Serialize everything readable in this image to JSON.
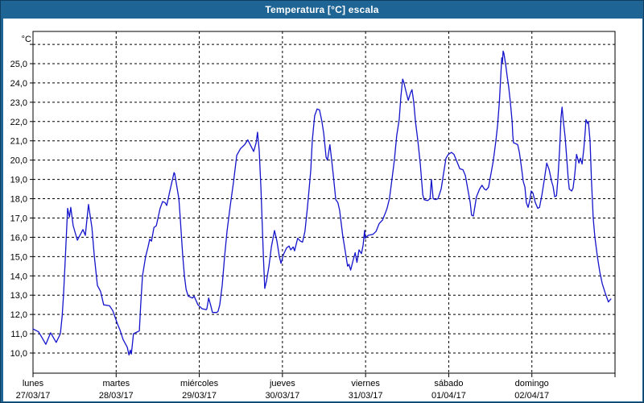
{
  "window": {
    "title": "Temperatura [°C] escala"
  },
  "colors": {
    "frame": "#1E6494",
    "frame_edge": "#0E3E62",
    "title_text": "#FFFFFF",
    "plot_background": "#FFFFFF",
    "grid": "#000000",
    "axis": "#000000",
    "label_text": "#000000",
    "line": "#1414CC"
  },
  "chart_data": {
    "type": "line",
    "title": "Temperatura [°C] escala",
    "unit_label": "°C",
    "legend": "none",
    "grid": "dashed",
    "x_axis": {
      "kind": "time",
      "total_hours": 168,
      "days": [
        {
          "name": "lunes",
          "date": "27/03/17"
        },
        {
          "name": "martes",
          "date": "28/03/17"
        },
        {
          "name": "miércoles",
          "date": "29/03/17"
        },
        {
          "name": "jueves",
          "date": "30/03/17"
        },
        {
          "name": "viernes",
          "date": "31/03/17"
        },
        {
          "name": "sábado",
          "date": "01/04/17"
        },
        {
          "name": "domingo",
          "date": "02/04/17"
        }
      ]
    },
    "y_axis": {
      "min": 10,
      "max": 26,
      "step": 1,
      "labeled_min": 10,
      "labeled_max": 25,
      "tick_labels": [
        "10,0",
        "11,0",
        "12,0",
        "13,0",
        "14,0",
        "15,0",
        "16,0",
        "17,0",
        "18,0",
        "19,0",
        "20,0",
        "21,0",
        "22,0",
        "23,0",
        "24,0",
        "25,0"
      ],
      "decimal_separator": ","
    },
    "series": [
      {
        "name": "Temperatura",
        "points": [
          [
            0,
            11.25
          ],
          [
            1.6,
            11.1
          ],
          [
            2.6,
            10.8
          ],
          [
            3.7,
            10.45
          ],
          [
            5.1,
            11.05
          ],
          [
            6.7,
            10.55
          ],
          [
            7.9,
            11.0
          ],
          [
            8.4,
            11.9
          ],
          [
            8.8,
            13.0
          ],
          [
            9.3,
            14.8
          ],
          [
            10.0,
            17.5
          ],
          [
            10.5,
            17.05
          ],
          [
            10.9,
            17.55
          ],
          [
            11.6,
            16.6
          ],
          [
            12.8,
            15.85
          ],
          [
            14.4,
            16.4
          ],
          [
            15.1,
            16.1
          ],
          [
            16.0,
            17.7
          ],
          [
            17.0,
            16.5
          ],
          [
            17.7,
            15.0
          ],
          [
            18.6,
            13.5
          ],
          [
            19.5,
            13.2
          ],
          [
            20.4,
            12.5
          ],
          [
            22.1,
            12.45
          ],
          [
            23.0,
            12.2
          ],
          [
            24.4,
            11.5
          ],
          [
            25.1,
            11.2
          ],
          [
            26.0,
            10.7
          ],
          [
            27.2,
            10.3
          ],
          [
            27.7,
            9.9
          ],
          [
            28.1,
            10.15
          ],
          [
            28.4,
            9.95
          ],
          [
            29.0,
            11.0
          ],
          [
            30.7,
            11.15
          ],
          [
            31.1,
            12.5
          ],
          [
            31.6,
            14.0
          ],
          [
            32.5,
            15.0
          ],
          [
            33.2,
            15.5
          ],
          [
            33.7,
            15.9
          ],
          [
            34.2,
            15.8
          ],
          [
            34.9,
            16.5
          ],
          [
            35.6,
            16.6
          ],
          [
            36.7,
            17.5
          ],
          [
            37.4,
            17.85
          ],
          [
            38.1,
            17.8
          ],
          [
            38.6,
            17.65
          ],
          [
            39.5,
            18.4
          ],
          [
            40.7,
            19.35
          ],
          [
            40.9,
            19.3
          ],
          [
            42.1,
            18.0
          ],
          [
            42.5,
            17.0
          ],
          [
            43.2,
            15.1
          ],
          [
            43.7,
            14.0
          ],
          [
            44.2,
            13.3
          ],
          [
            44.8,
            12.95
          ],
          [
            46.0,
            12.85
          ],
          [
            46.5,
            12.95
          ],
          [
            47.6,
            12.5
          ],
          [
            48.8,
            12.3
          ],
          [
            50.0,
            12.25
          ],
          [
            50.2,
            12.3
          ],
          [
            50.7,
            12.85
          ],
          [
            51.4,
            12.4
          ],
          [
            51.8,
            12.1
          ],
          [
            53.0,
            12.1
          ],
          [
            53.4,
            12.15
          ],
          [
            53.9,
            12.5
          ],
          [
            54.6,
            13.5
          ],
          [
            55.3,
            15.0
          ],
          [
            56.0,
            16.3
          ],
          [
            56.9,
            17.6
          ],
          [
            57.9,
            18.9
          ],
          [
            58.8,
            20.25
          ],
          [
            59.9,
            20.6
          ],
          [
            61.1,
            20.8
          ],
          [
            62.0,
            21.05
          ],
          [
            63.0,
            20.7
          ],
          [
            63.7,
            20.45
          ],
          [
            64.4,
            20.9
          ],
          [
            64.8,
            21.45
          ],
          [
            65.3,
            20.5
          ],
          [
            65.8,
            18.5
          ],
          [
            66.2,
            16.5
          ],
          [
            66.5,
            15.0
          ],
          [
            66.9,
            13.35
          ],
          [
            67.4,
            13.75
          ],
          [
            68.1,
            14.5
          ],
          [
            68.8,
            15.5
          ],
          [
            69.7,
            16.35
          ],
          [
            70.4,
            15.8
          ],
          [
            71.1,
            15.0
          ],
          [
            71.6,
            14.65
          ],
          [
            72.3,
            15.1
          ],
          [
            73.2,
            15.45
          ],
          [
            73.9,
            15.55
          ],
          [
            74.4,
            15.35
          ],
          [
            75.1,
            15.5
          ],
          [
            75.5,
            15.3
          ],
          [
            76.4,
            15.95
          ],
          [
            77.2,
            15.8
          ],
          [
            77.8,
            15.75
          ],
          [
            78.5,
            16.3
          ],
          [
            79.2,
            17.5
          ],
          [
            79.7,
            18.5
          ],
          [
            80.2,
            19.5
          ],
          [
            80.6,
            21.0
          ],
          [
            81.3,
            22.3
          ],
          [
            82.0,
            22.65
          ],
          [
            82.7,
            22.6
          ],
          [
            83.4,
            22.0
          ],
          [
            83.9,
            21.4
          ],
          [
            84.6,
            20.15
          ],
          [
            85.0,
            20.0
          ],
          [
            85.7,
            20.8
          ],
          [
            86.2,
            20.0
          ],
          [
            86.7,
            19.2
          ],
          [
            87.4,
            17.95
          ],
          [
            88.0,
            17.8
          ],
          [
            88.5,
            17.4
          ],
          [
            89.4,
            16.1
          ],
          [
            90.1,
            15.3
          ],
          [
            90.8,
            14.5
          ],
          [
            91.2,
            14.6
          ],
          [
            91.7,
            14.3
          ],
          [
            92.4,
            14.8
          ],
          [
            93.0,
            15.2
          ],
          [
            93.5,
            14.7
          ],
          [
            94.1,
            15.35
          ],
          [
            94.8,
            15.15
          ],
          [
            95.3,
            15.6
          ],
          [
            95.7,
            16.35
          ],
          [
            95.9,
            15.95
          ],
          [
            96.7,
            16.1
          ],
          [
            98.1,
            16.15
          ],
          [
            99.0,
            16.3
          ],
          [
            99.9,
            16.7
          ],
          [
            100.9,
            16.9
          ],
          [
            101.8,
            17.3
          ],
          [
            102.2,
            17.5
          ],
          [
            102.9,
            18.0
          ],
          [
            103.6,
            19.0
          ],
          [
            104.3,
            20.0
          ],
          [
            105.0,
            21.3
          ],
          [
            105.7,
            22.1
          ],
          [
            106.2,
            23.3
          ],
          [
            106.7,
            24.2
          ],
          [
            107.1,
            24.0
          ],
          [
            107.6,
            23.6
          ],
          [
            108.3,
            23.1
          ],
          [
            109.0,
            23.5
          ],
          [
            109.4,
            23.65
          ],
          [
            109.9,
            23.0
          ],
          [
            110.4,
            22.0
          ],
          [
            111.1,
            21.0
          ],
          [
            111.8,
            19.8
          ],
          [
            112.5,
            18.2
          ],
          [
            112.9,
            17.95
          ],
          [
            113.9,
            17.9
          ],
          [
            114.6,
            18.0
          ],
          [
            115.0,
            19.0
          ],
          [
            115.5,
            18.0
          ],
          [
            116.2,
            17.95
          ],
          [
            116.9,
            18.0
          ],
          [
            117.8,
            18.5
          ],
          [
            118.5,
            19.3
          ],
          [
            119.2,
            20.1
          ],
          [
            119.9,
            20.3
          ],
          [
            120.8,
            20.4
          ],
          [
            121.5,
            20.3
          ],
          [
            122.2,
            20.0
          ],
          [
            123.2,
            19.55
          ],
          [
            124.1,
            19.5
          ],
          [
            124.8,
            19.2
          ],
          [
            125.5,
            18.5
          ],
          [
            126.2,
            17.8
          ],
          [
            126.6,
            17.15
          ],
          [
            127.1,
            17.1
          ],
          [
            128.0,
            18.1
          ],
          [
            128.9,
            18.5
          ],
          [
            129.6,
            18.7
          ],
          [
            130.3,
            18.5
          ],
          [
            130.8,
            18.45
          ],
          [
            131.5,
            18.6
          ],
          [
            132.4,
            19.5
          ],
          [
            132.9,
            20.0
          ],
          [
            133.6,
            21.0
          ],
          [
            134.1,
            21.8
          ],
          [
            134.6,
            23.0
          ],
          [
            135.0,
            24.3
          ],
          [
            135.3,
            25.3
          ],
          [
            135.5,
            25.05
          ],
          [
            135.7,
            25.65
          ],
          [
            135.9,
            25.55
          ],
          [
            136.4,
            25.0
          ],
          [
            136.9,
            24.3
          ],
          [
            137.3,
            23.8
          ],
          [
            137.8,
            23.0
          ],
          [
            138.3,
            22.0
          ],
          [
            138.5,
            21.3
          ],
          [
            138.7,
            20.9
          ],
          [
            139.4,
            20.85
          ],
          [
            139.9,
            20.8
          ],
          [
            140.4,
            20.4
          ],
          [
            140.8,
            19.9
          ],
          [
            141.5,
            18.9
          ],
          [
            142.0,
            18.6
          ],
          [
            142.4,
            17.8
          ],
          [
            142.9,
            17.55
          ],
          [
            143.4,
            17.9
          ],
          [
            143.8,
            18.4
          ],
          [
            144.3,
            18.3
          ],
          [
            145.0,
            17.8
          ],
          [
            145.7,
            17.5
          ],
          [
            146.2,
            17.55
          ],
          [
            146.9,
            18.2
          ],
          [
            147.6,
            19.0
          ],
          [
            148.3,
            19.85
          ],
          [
            149.0,
            19.5
          ],
          [
            149.7,
            18.9
          ],
          [
            150.1,
            18.65
          ],
          [
            150.6,
            18.1
          ],
          [
            151.1,
            18.15
          ],
          [
            151.5,
            19.0
          ],
          [
            152.0,
            20.5
          ],
          [
            152.2,
            21.3
          ],
          [
            152.4,
            22.2
          ],
          [
            152.7,
            22.75
          ],
          [
            153.1,
            22.0
          ],
          [
            153.6,
            21.2
          ],
          [
            154.1,
            20.0
          ],
          [
            154.5,
            19.0
          ],
          [
            154.8,
            18.5
          ],
          [
            155.5,
            18.4
          ],
          [
            155.9,
            18.55
          ],
          [
            156.4,
            19.3
          ],
          [
            156.9,
            20.3
          ],
          [
            157.6,
            19.85
          ],
          [
            158.0,
            20.1
          ],
          [
            158.5,
            19.8
          ],
          [
            159.0,
            20.6
          ],
          [
            159.4,
            21.5
          ],
          [
            159.6,
            22.1
          ],
          [
            160.1,
            21.9
          ],
          [
            160.3,
            22.0
          ],
          [
            160.8,
            21.0
          ],
          [
            161.2,
            19.0
          ],
          [
            161.7,
            17.0
          ],
          [
            162.2,
            16.0
          ],
          [
            162.9,
            15.0
          ],
          [
            163.6,
            14.2
          ],
          [
            164.3,
            13.6
          ],
          [
            165.2,
            13.1
          ],
          [
            166.1,
            12.65
          ],
          [
            166.8,
            12.8
          ]
        ]
      }
    ]
  }
}
